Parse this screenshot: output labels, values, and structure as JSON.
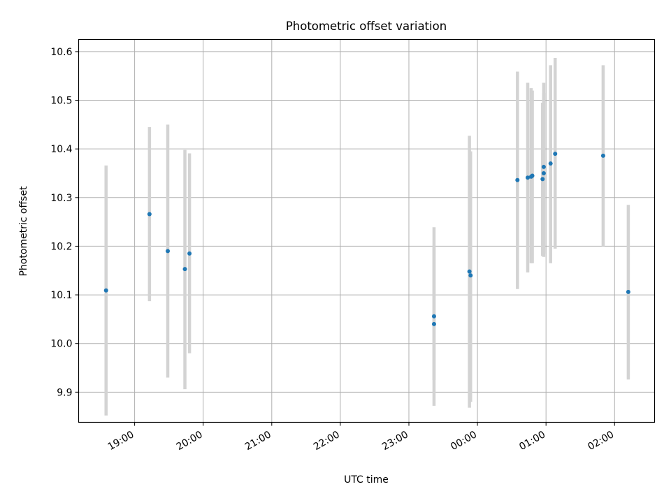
{
  "chart_data": {
    "type": "scatter",
    "title": "Photometric offset variation",
    "xlabel": "UTC time",
    "ylabel": "Photometric offset",
    "x_ticks": [
      "19:00",
      "20:00",
      "21:00",
      "22:00",
      "23:00",
      "00:00",
      "01:00",
      "02:00"
    ],
    "y_ticks": [
      "9.9",
      "10.0",
      "10.1",
      "10.2",
      "10.3",
      "10.4",
      "10.5",
      "10.6"
    ],
    "x_range": [
      "18:11",
      "02:35"
    ],
    "ylim": [
      9.838,
      10.625
    ],
    "grid": true,
    "point_color": "#1f77b4",
    "errorbar_color": "#d3d3d3",
    "series": [
      {
        "points": [
          {
            "x": "18:35",
            "y": 10.109,
            "low": 9.852,
            "high": 10.366
          },
          {
            "x": "19:13",
            "y": 10.266,
            "low": 10.087,
            "high": 10.445
          },
          {
            "x": "19:29",
            "y": 10.19,
            "low": 9.93,
            "high": 10.45
          },
          {
            "x": "19:44",
            "y": 10.153,
            "low": 9.906,
            "high": 10.398
          },
          {
            "x": "19:48",
            "y": 10.185,
            "low": 9.98,
            "high": 10.391
          },
          {
            "x": "23:22",
            "y": 10.056,
            "low": 9.872,
            "high": 10.239
          },
          {
            "x": "23:22",
            "y": 10.04,
            "low": 9.925,
            "high": 10.2
          },
          {
            "x": "23:53",
            "y": 10.148,
            "low": 9.868,
            "high": 10.427
          },
          {
            "x": "23:54",
            "y": 10.14,
            "low": 9.88,
            "high": 10.395
          },
          {
            "x": "00:35",
            "y": 10.336,
            "low": 10.112,
            "high": 10.559
          },
          {
            "x": "00:44",
            "y": 10.341,
            "low": 10.146,
            "high": 10.536
          },
          {
            "x": "00:47",
            "y": 10.343,
            "low": 10.165,
            "high": 10.525
          },
          {
            "x": "00:48",
            "y": 10.345,
            "low": 10.165,
            "high": 10.52
          },
          {
            "x": "00:57",
            "y": 10.338,
            "low": 10.18,
            "high": 10.495
          },
          {
            "x": "00:58",
            "y": 10.35,
            "low": 10.185,
            "high": 10.515
          },
          {
            "x": "00:58",
            "y": 10.363,
            "low": 10.178,
            "high": 10.536
          },
          {
            "x": "01:04",
            "y": 10.37,
            "low": 10.165,
            "high": 10.572
          },
          {
            "x": "01:08",
            "y": 10.39,
            "low": 10.195,
            "high": 10.587
          },
          {
            "x": "01:50",
            "y": 10.386,
            "low": 10.2,
            "high": 10.572
          },
          {
            "x": "02:12",
            "y": 10.106,
            "low": 9.926,
            "high": 10.285
          }
        ]
      }
    ]
  }
}
